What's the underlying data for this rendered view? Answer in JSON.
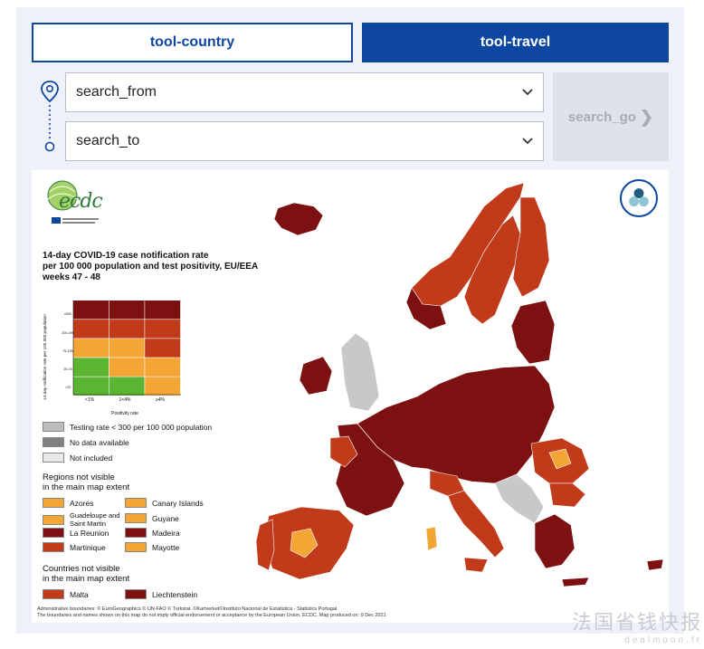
{
  "tabs": {
    "country": "tool-country",
    "travel": "tool-travel"
  },
  "search": {
    "from": "search_from",
    "to": "search_to",
    "go": "search_go",
    "go_arrow": "❯"
  },
  "map": {
    "logo_text": "ecdc",
    "title_lines": [
      "14-day COVID-19 case notification rate",
      "per 100 000 population and test positivity, EU/EEA",
      "weeks 47 - 48"
    ],
    "matrix": {
      "y_axis_label": "14-day notification rate per 100 000 population",
      "x_axis_label": "Positivity rate",
      "x_ticks": [
        "<1%",
        "1<4%",
        "≥4%"
      ],
      "y_ticks": [
        "≥500",
        "200-499",
        "75-199",
        "25-74",
        "<25"
      ],
      "colors": [
        [
          "#7d1111",
          "#7d1111",
          "#7d1111"
        ],
        [
          "#c13a1a",
          "#c13a1a",
          "#c13a1a"
        ],
        [
          "#f3a535",
          "#f3a535",
          "#c13a1a"
        ],
        [
          "#5cb531",
          "#f3a535",
          "#f3a535"
        ],
        [
          "#5cb531",
          "#5cb531",
          "#f3a535"
        ]
      ]
    },
    "legend_status": [
      {
        "label": "Testing rate < 300 per 100 000 population",
        "color": "#bdbdbd"
      },
      {
        "label": "No data available",
        "color": "#808080"
      },
      {
        "label": "Not included",
        "color": "#e8e8e8"
      }
    ],
    "regions_heading": [
      "Regions not visible",
      "in the main map extent"
    ],
    "regions": [
      {
        "label": "Azores",
        "color": "#f3a535"
      },
      {
        "label": "Canary Islands",
        "color": "#f3a535"
      },
      {
        "label": "Guadeloupe and Saint Martin",
        "color": "#f3a535"
      },
      {
        "label": "Guyane",
        "color": "#f3a535"
      },
      {
        "label": "La Reunion",
        "color": "#7d1111"
      },
      {
        "label": "Madeira",
        "color": "#7d1111"
      },
      {
        "label": "Martinique",
        "color": "#c13a1a"
      },
      {
        "label": "Mayotte",
        "color": "#f3a535"
      }
    ],
    "countries_heading": [
      "Countries not visible",
      "in the main map extent"
    ],
    "countries": [
      {
        "label": "Malta",
        "color": "#c13a1a"
      },
      {
        "label": "Liechtenstein",
        "color": "#7d1111"
      }
    ],
    "credits": [
      "Administrative boundaries: © EuroGeographics © UN-FAO © Turkstat. ©Kartverket©Instituto Nacional de Estatística - Statistics Portugal.",
      "The boundaries and names shown on this map do not imply official endorsement or acceptance by the European Union. ECDC. Map produced on: 9 Dec 2021"
    ]
  },
  "watermark": {
    "cn": "法国省钱快报",
    "en": "dealmoon.fr"
  }
}
